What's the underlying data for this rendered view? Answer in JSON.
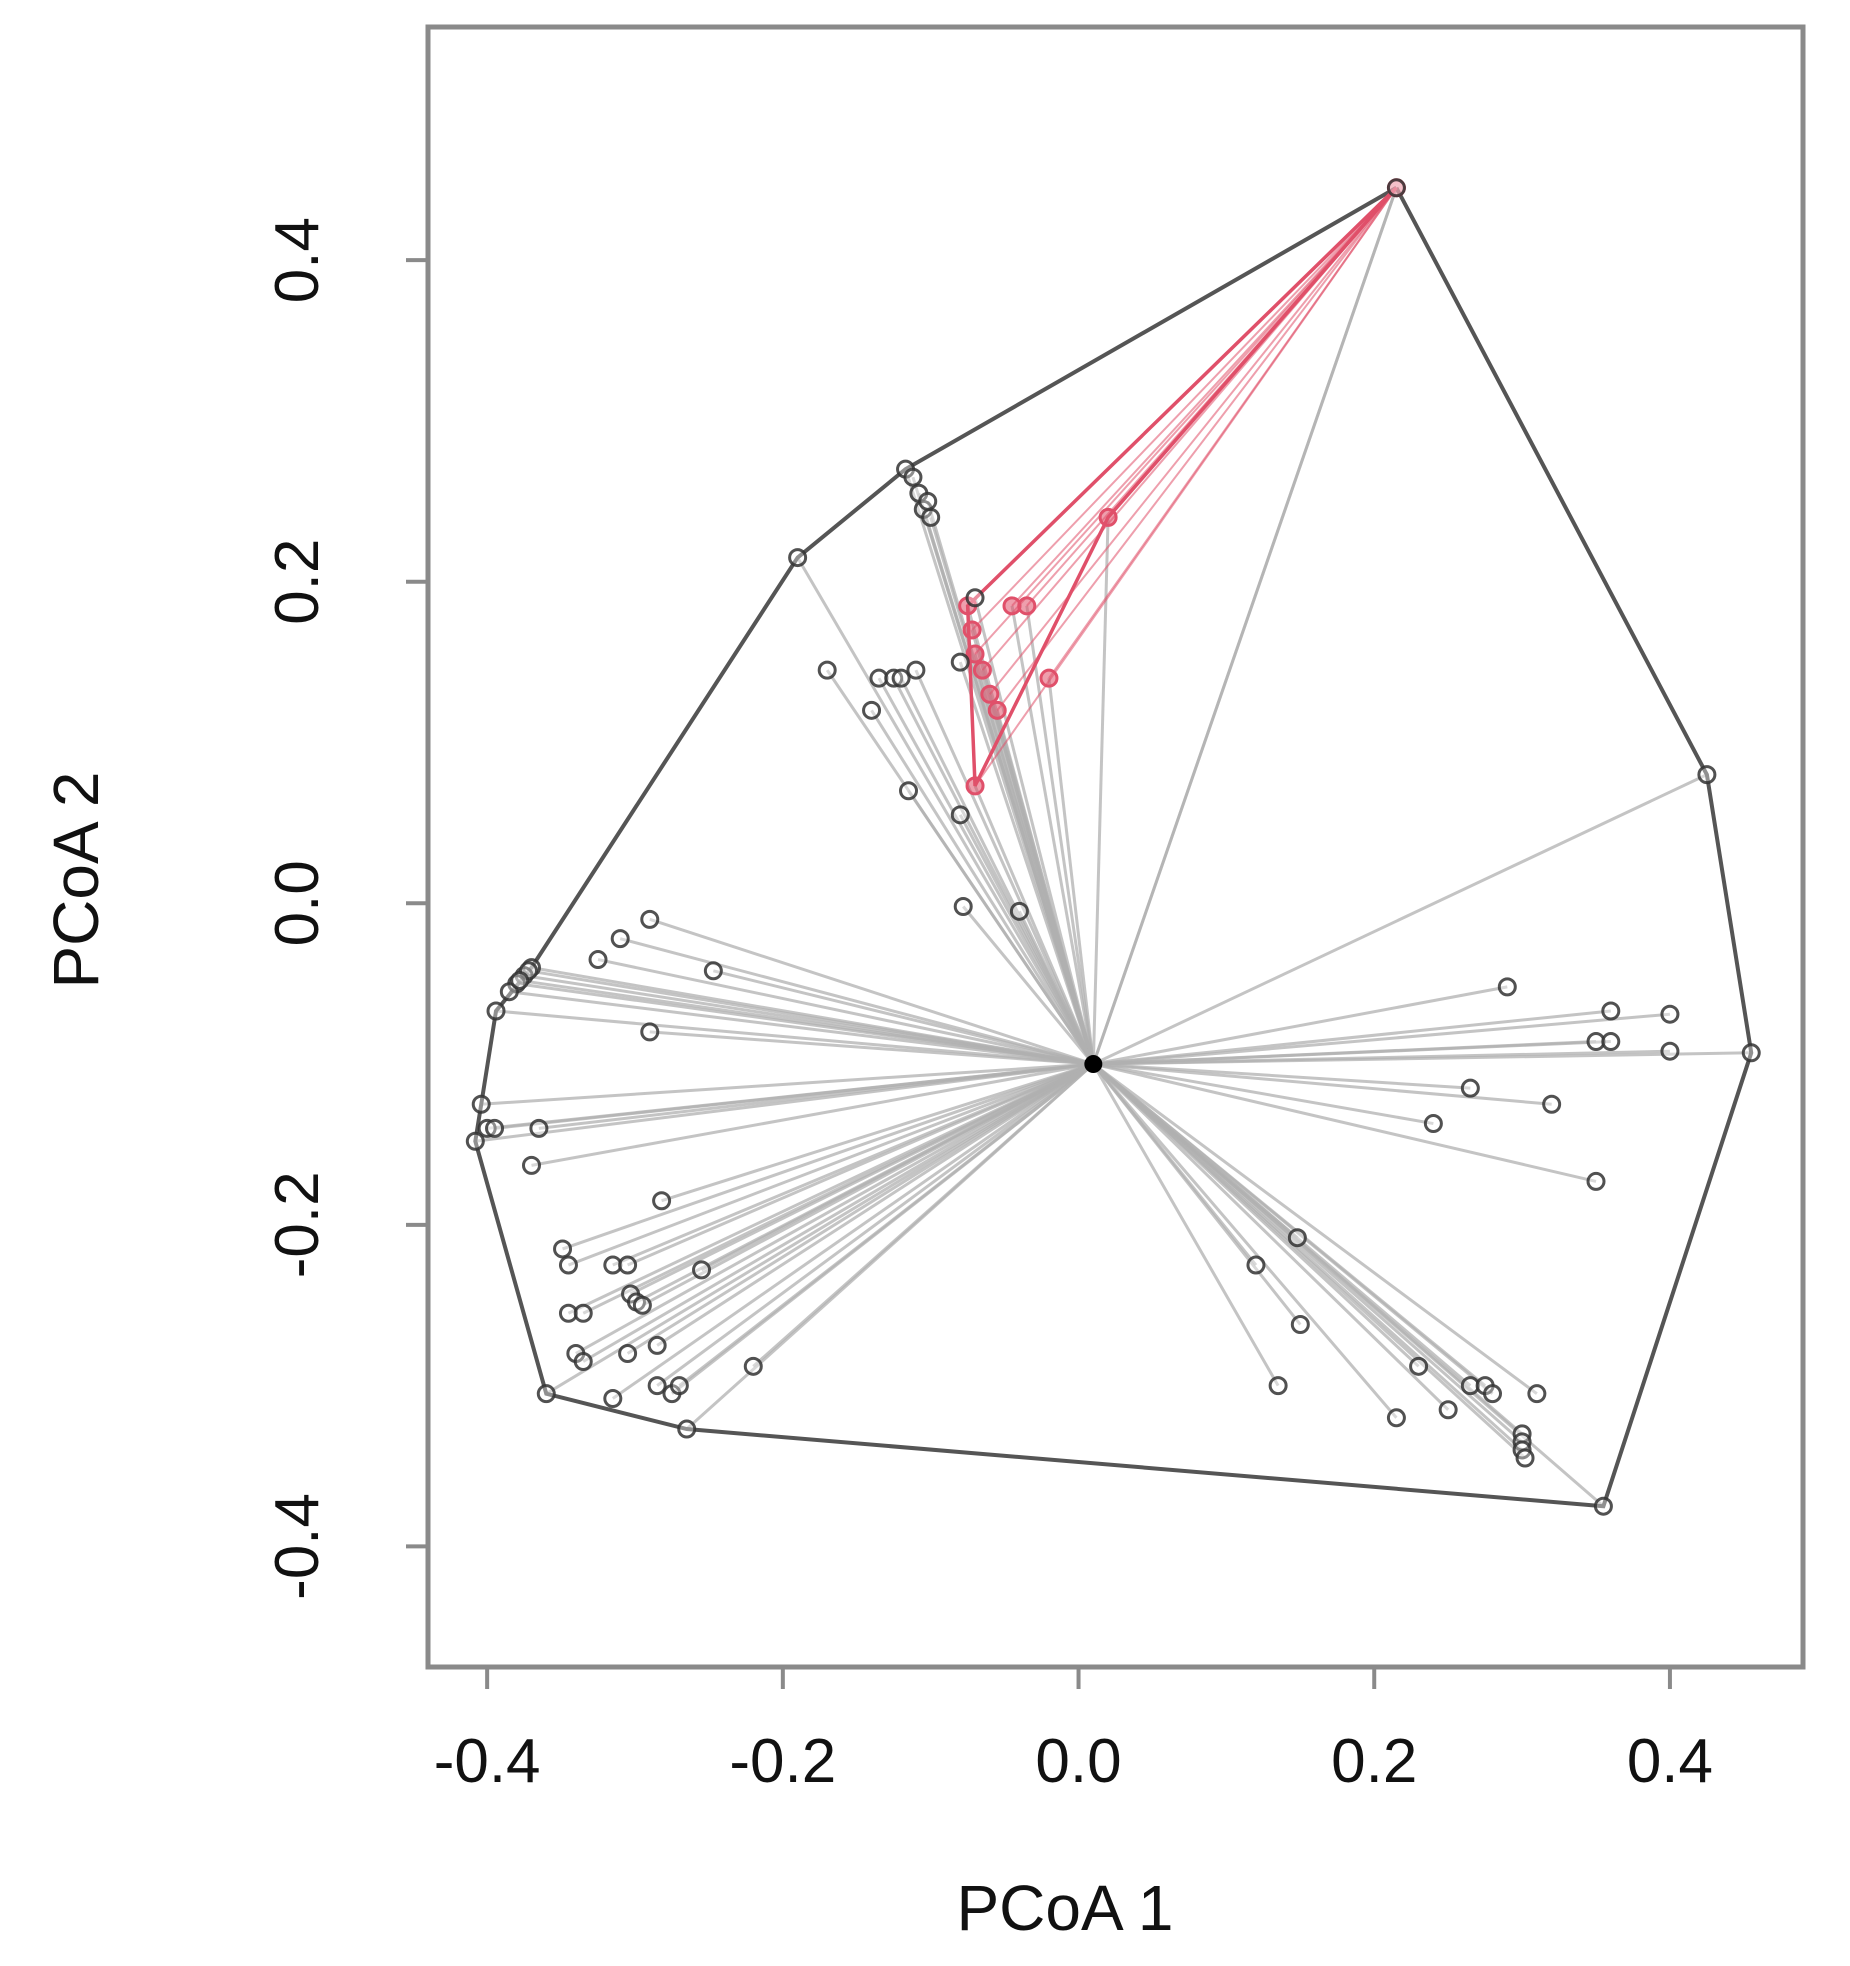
{
  "chart_data": {
    "type": "scatter",
    "title": "",
    "xlabel": "PCoA 1",
    "ylabel": "PCoA 2",
    "xlim": [
      -0.44,
      0.49
    ],
    "ylim": [
      -0.475,
      0.545
    ],
    "x_ticks": [
      -0.4,
      -0.2,
      0.0,
      0.2,
      0.4
    ],
    "y_ticks": [
      -0.4,
      -0.2,
      0.0,
      0.2,
      0.4
    ],
    "tick_labels_x": [
      "-0.4",
      "-0.2",
      "0.0",
      "0.2",
      "0.4"
    ],
    "tick_labels_y": [
      "-0.4",
      "-0.2",
      "0.0",
      "0.2",
      "0.4"
    ],
    "centroid": {
      "x": 0.01,
      "y": -0.1
    },
    "colors": {
      "main": "#333333",
      "spoke": "#b0b0b0",
      "hull": "#555555",
      "highlight": "#e0506a",
      "frame": "#8a8a8a"
    },
    "hull": [
      [
        0.215,
        0.445
      ],
      [
        0.425,
        0.08
      ],
      [
        0.455,
        -0.093
      ],
      [
        0.355,
        -0.375
      ],
      [
        -0.265,
        -0.327
      ],
      [
        -0.36,
        -0.305
      ],
      [
        -0.408,
        -0.148
      ],
      [
        -0.404,
        -0.125
      ],
      [
        -0.394,
        -0.067
      ],
      [
        -0.37,
        -0.04
      ],
      [
        -0.19,
        0.215
      ],
      [
        -0.117,
        0.27
      ],
      [
        0.215,
        0.445
      ]
    ],
    "highlight_group": {
      "hull": [
        [
          0.215,
          0.445
        ],
        [
          0.02,
          0.24
        ],
        [
          -0.07,
          0.073
        ],
        [
          -0.075,
          0.185
        ],
        [
          0.215,
          0.445
        ]
      ],
      "points": [
        [
          0.215,
          0.445
        ],
        [
          0.02,
          0.24
        ],
        [
          -0.07,
          0.073
        ],
        [
          -0.075,
          0.185
        ],
        [
          -0.072,
          0.17
        ],
        [
          -0.07,
          0.155
        ],
        [
          -0.065,
          0.145
        ],
        [
          -0.06,
          0.13
        ],
        [
          -0.055,
          0.12
        ],
        [
          -0.045,
          0.185
        ],
        [
          -0.035,
          0.185
        ],
        [
          -0.02,
          0.14
        ]
      ]
    },
    "points": [
      [
        0.215,
        0.445
      ],
      [
        0.425,
        0.08
      ],
      [
        0.455,
        -0.093
      ],
      [
        0.355,
        -0.375
      ],
      [
        -0.265,
        -0.327
      ],
      [
        -0.36,
        -0.305
      ],
      [
        -0.408,
        -0.148
      ],
      [
        -0.404,
        -0.125
      ],
      [
        -0.394,
        -0.067
      ],
      [
        -0.37,
        -0.04
      ],
      [
        -0.19,
        0.215
      ],
      [
        -0.117,
        0.27
      ],
      [
        -0.112,
        0.265
      ],
      [
        -0.108,
        0.255
      ],
      [
        -0.105,
        0.245
      ],
      [
        -0.1,
        0.24
      ],
      [
        -0.102,
        0.25
      ],
      [
        -0.07,
        0.19
      ],
      [
        -0.17,
        0.145
      ],
      [
        -0.135,
        0.14
      ],
      [
        -0.125,
        0.14
      ],
      [
        -0.12,
        0.14
      ],
      [
        -0.11,
        0.145
      ],
      [
        -0.08,
        0.15
      ],
      [
        -0.14,
        0.12
      ],
      [
        -0.115,
        0.07
      ],
      [
        -0.08,
        0.055
      ],
      [
        -0.078,
        -0.002
      ],
      [
        -0.04,
        -0.005
      ],
      [
        -0.29,
        -0.01
      ],
      [
        -0.31,
        -0.022
      ],
      [
        -0.325,
        -0.035
      ],
      [
        -0.247,
        -0.042
      ],
      [
        -0.29,
        -0.08
      ],
      [
        -0.375,
        -0.045
      ],
      [
        -0.38,
        -0.05
      ],
      [
        -0.385,
        -0.055
      ],
      [
        -0.372,
        -0.042
      ],
      [
        -0.378,
        -0.048
      ],
      [
        -0.4,
        -0.14
      ],
      [
        -0.395,
        -0.14
      ],
      [
        -0.365,
        -0.14
      ],
      [
        -0.37,
        -0.163
      ],
      [
        -0.282,
        -0.185
      ],
      [
        -0.349,
        -0.215
      ],
      [
        -0.345,
        -0.225
      ],
      [
        -0.315,
        -0.225
      ],
      [
        -0.305,
        -0.225
      ],
      [
        -0.255,
        -0.228
      ],
      [
        -0.303,
        -0.243
      ],
      [
        -0.299,
        -0.248
      ],
      [
        -0.295,
        -0.25
      ],
      [
        -0.345,
        -0.255
      ],
      [
        -0.335,
        -0.255
      ],
      [
        -0.285,
        -0.275
      ],
      [
        -0.34,
        -0.28
      ],
      [
        -0.335,
        -0.285
      ],
      [
        -0.305,
        -0.28
      ],
      [
        -0.22,
        -0.288
      ],
      [
        -0.285,
        -0.3
      ],
      [
        -0.275,
        -0.305
      ],
      [
        -0.27,
        -0.3
      ],
      [
        -0.315,
        -0.308
      ],
      [
        0.29,
        -0.052
      ],
      [
        0.36,
        -0.067
      ],
      [
        0.4,
        -0.069
      ],
      [
        0.35,
        -0.086
      ],
      [
        0.36,
        -0.086
      ],
      [
        0.4,
        -0.092
      ],
      [
        0.265,
        -0.115
      ],
      [
        0.32,
        -0.125
      ],
      [
        0.24,
        -0.137
      ],
      [
        0.35,
        -0.173
      ],
      [
        0.148,
        -0.208
      ],
      [
        0.12,
        -0.225
      ],
      [
        0.15,
        -0.262
      ],
      [
        0.135,
        -0.3
      ],
      [
        0.23,
        -0.288
      ],
      [
        0.215,
        -0.32
      ],
      [
        0.25,
        -0.315
      ],
      [
        0.265,
        -0.3
      ],
      [
        0.275,
        -0.3
      ],
      [
        0.28,
        -0.305
      ],
      [
        0.31,
        -0.305
      ],
      [
        0.3,
        -0.33
      ],
      [
        0.3,
        -0.335
      ],
      [
        0.3,
        -0.34
      ],
      [
        0.302,
        -0.345
      ]
    ]
  }
}
